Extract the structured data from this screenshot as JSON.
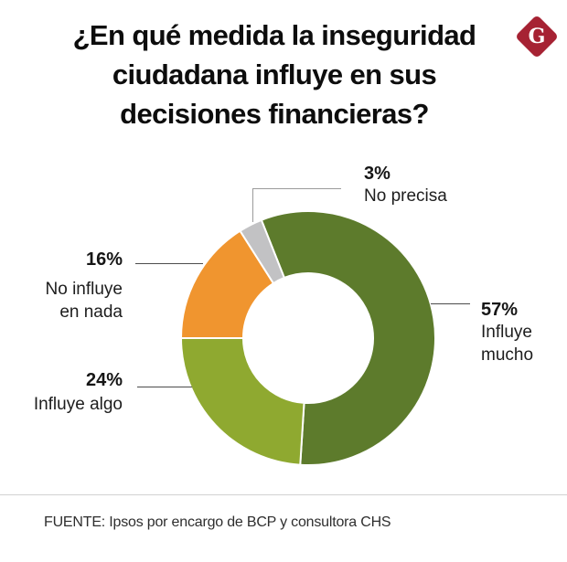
{
  "header": {
    "title_lines": [
      "¿En qué medida la inseguridad",
      "ciudadana influye en sus",
      "decisiones financieras?"
    ],
    "logo_letter": "G",
    "logo_color": "#a62233"
  },
  "chart_data": {
    "type": "pie",
    "subtype": "donut",
    "title": "¿En qué medida la inseguridad ciudadana influye en sus decisiones financieras?",
    "units": "percent",
    "total": 100,
    "start_angle_deg": -21.6,
    "direction": "clockwise",
    "slices": [
      {
        "id": "influye-mucho",
        "label": "Influye mucho",
        "pct": "57%",
        "value": 57,
        "color": "#5d7b2c"
      },
      {
        "id": "influye-algo",
        "label": "Influye algo",
        "pct": "24%",
        "value": 24,
        "color": "#8fa930"
      },
      {
        "id": "no-influye-en-nada",
        "label": "No influye en nada",
        "pct": "16%",
        "value": 16,
        "color": "#f0952f"
      },
      {
        "id": "no-precisa",
        "label": "No precisa",
        "pct": "3%",
        "value": 3,
        "color": "#c2c2c4"
      }
    ],
    "legend_position": "callouts"
  },
  "footer": {
    "source": "FUENTE: Ipsos por encargo de BCP y consultora CHS"
  }
}
